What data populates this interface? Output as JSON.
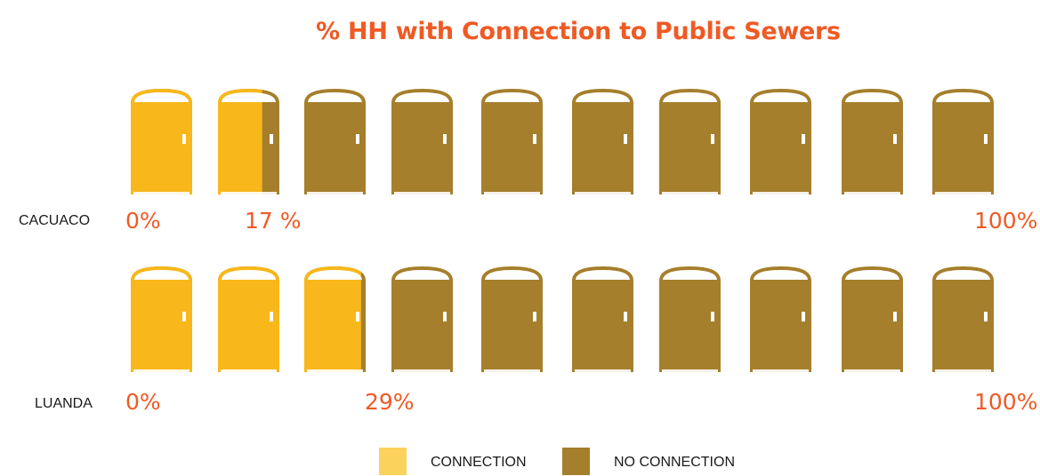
{
  "colors": {
    "title": "#ef5a24",
    "connection": "#f8b71a",
    "no_connection": "#a67f2c",
    "legend_connection": "#fbd35c",
    "percent": "#ef5a24"
  },
  "chart_data": {
    "type": "pictograph",
    "title": "% HH with Connection to Public Sewers",
    "icon": "door-icon",
    "icons_per_row": 10,
    "series": [
      {
        "name": "CACUACO",
        "value": 17,
        "start_label": "0%",
        "value_label": "17 %",
        "end_label": "100%"
      },
      {
        "name": "LUANDA",
        "value": 29,
        "start_label": "0%",
        "value_label": "29%",
        "end_label": "100%"
      }
    ],
    "legend": [
      "CONNECTION",
      "NO CONNECTION"
    ]
  }
}
